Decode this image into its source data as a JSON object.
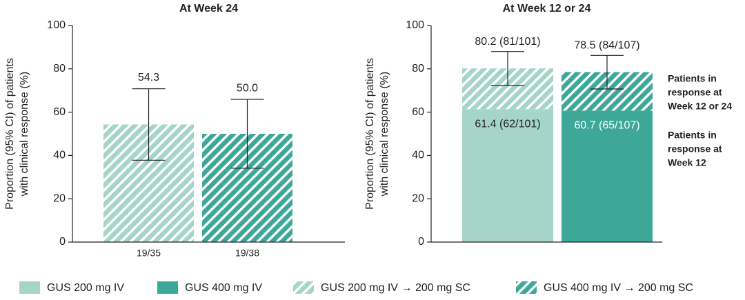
{
  "chart_data": [
    {
      "type": "bar",
      "title": "At Week 24",
      "ylabel": [
        "Proportion (95% CI) of patients",
        "with clinical response (%)"
      ],
      "categories": [
        "19/35",
        "19/38"
      ],
      "values": [
        54.3,
        50.0
      ],
      "value_labels": [
        "54.3",
        "50.0"
      ],
      "ci_low": [
        37.8,
        34.1
      ],
      "ci_high": [
        70.8,
        65.9
      ],
      "colors": [
        "#a5d5c8",
        "#3da898"
      ],
      "hatched": true,
      "ylim": [
        0,
        100
      ],
      "yticks": [
        0,
        20,
        40,
        60,
        80,
        100
      ]
    },
    {
      "type": "stacked_bar",
      "title": "At Week 12 or 24",
      "ylabel": [
        "Proportion (95% CI) of patients",
        "with clinical response (%)"
      ],
      "colors": [
        "#a5d5c8",
        "#3da898"
      ],
      "series": [
        {
          "name": "Week 12",
          "hatched": false,
          "values": [
            61.4,
            60.7
          ],
          "value_labels": [
            "61.4 (62/101)",
            "60.7 (65/107)"
          ]
        },
        {
          "name": "Week 12 or 24",
          "hatched": true,
          "values": [
            18.8,
            17.8
          ]
        }
      ],
      "totals": [
        80.2,
        78.5
      ],
      "total_labels": [
        "80.2 (81/101)",
        "78.5 (84/107)"
      ],
      "ci_low": [
        72.3,
        70.7
      ],
      "ci_high": [
        88.0,
        86.2
      ],
      "annotations": [
        [
          "Patients in",
          "response at",
          "Week 12 or 24"
        ],
        [
          "Patients in",
          "response at",
          "Week 12"
        ]
      ],
      "ylim": [
        0,
        100
      ],
      "yticks": [
        0,
        20,
        40,
        60,
        80,
        100
      ]
    }
  ],
  "legend": [
    {
      "name": "GUS 200 mg IV",
      "color": "#a5d5c8",
      "hatched": false
    },
    {
      "name": "GUS 400 mg IV",
      "color": "#3da898",
      "hatched": false
    },
    {
      "name": "GUS 200 mg IV → 200 mg SC",
      "color": "#a5d5c8",
      "hatched": true
    },
    {
      "name": "GUS 400 mg IV → 200 mg SC",
      "color": "#3da898",
      "hatched": true
    }
  ]
}
